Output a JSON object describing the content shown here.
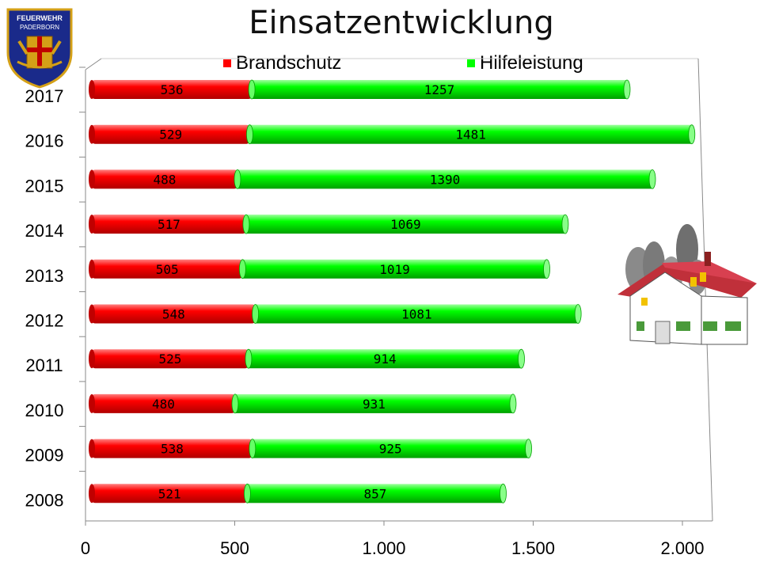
{
  "title": "Einsatzentwicklung",
  "logo": {
    "text_line1": "FEUERWEHR",
    "text_line2": "PADERBORN"
  },
  "colors": {
    "brandschutz": "#ff0000",
    "hilfeleistung": "#00ff00"
  },
  "chart_data": {
    "type": "bar",
    "orientation": "horizontal",
    "stacked": true,
    "title": "Einsatzentwicklung",
    "categories": [
      "2017",
      "2016",
      "2015",
      "2014",
      "2013",
      "2012",
      "2011",
      "2010",
      "2009",
      "2008"
    ],
    "series": [
      {
        "name": "Brandschutz",
        "color": "#ff0000",
        "values": [
          536,
          529,
          488,
          517,
          505,
          548,
          525,
          480,
          538,
          521
        ]
      },
      {
        "name": "Hilfeleistung",
        "color": "#00ff00",
        "values": [
          1257,
          1481,
          1390,
          1069,
          1019,
          1081,
          914,
          931,
          925,
          857
        ]
      }
    ],
    "xlim": [
      0,
      2000
    ],
    "xticks": [
      "0",
      "500",
      "1.000",
      "1.500",
      "2.000"
    ],
    "legend_position": "top",
    "grid": false
  }
}
